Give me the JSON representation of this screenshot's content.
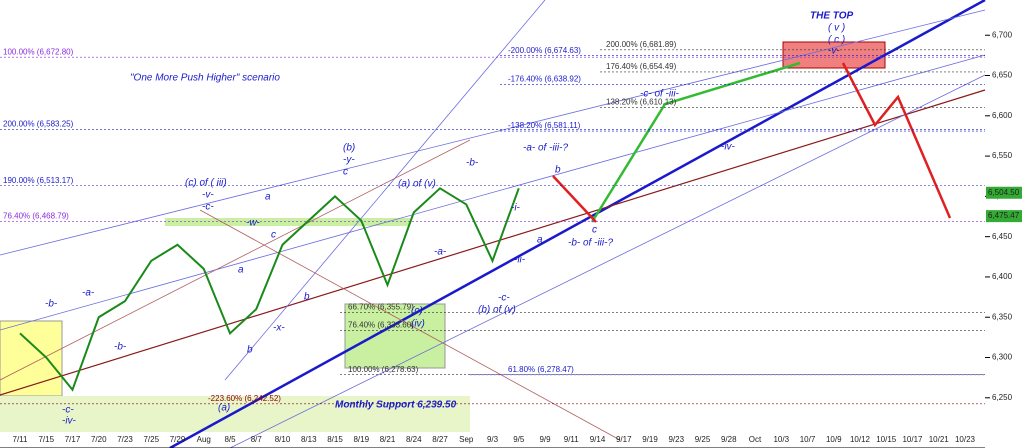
{
  "chart_data": {
    "type": "line",
    "categories": [
      "7/11",
      "7/15",
      "7/17",
      "7/20",
      "7/23",
      "7/25",
      "7/29",
      "Aug",
      "8/5",
      "8/7",
      "8/10",
      "8/13",
      "8/15",
      "8/19",
      "8/21",
      "8/24",
      "8/27",
      "Sep",
      "9/3",
      "9/5",
      "9/9",
      "9/11",
      "9/14",
      "9/17",
      "9/19",
      "9/23",
      "9/25",
      "9/28",
      "Oct",
      "10/3",
      "10/7",
      "10/9",
      "10/12",
      "10/15",
      "10/17",
      "10/21",
      "10/23"
    ],
    "values": [
      6330,
      6300,
      6260,
      6350,
      6370,
      6420,
      6440,
      6410,
      6330,
      6360,
      6440,
      6470,
      6500,
      6470,
      6390,
      6480,
      6510,
      6490,
      6420,
      6510,
      null,
      null,
      null,
      null,
      null,
      null,
      null,
      null,
      null,
      null,
      null,
      null,
      null,
      null,
      null,
      null,
      null
    ],
    "color": "#1a8a1a",
    "ylim": [
      6215,
      6740
    ],
    "yticks": [
      {
        "value": 6250,
        "label": "6,250"
      },
      {
        "value": 6300,
        "label": "6,300"
      },
      {
        "value": 6350,
        "label": "6,350"
      },
      {
        "value": 6400,
        "label": "6,400"
      },
      {
        "value": 6450,
        "label": "6,450"
      },
      {
        "value": 6500,
        "label": "6,500"
      },
      {
        "value": 6550,
        "label": "6,550"
      },
      {
        "value": 6600,
        "label": "6,600"
      },
      {
        "value": 6650,
        "label": "6,650"
      },
      {
        "value": 6700,
        "label": "6,700"
      }
    ],
    "last_prices": [
      {
        "value": 6504.5,
        "label": "6,504.50"
      },
      {
        "value": 6475.47,
        "label": "6,475.47"
      }
    ],
    "levels": [
      {
        "value": 6672.8,
        "label": "100.00% (6,672.80)",
        "color": "#8a2be2"
      },
      {
        "value": 6583.25,
        "label": "200.00% (6,583.25)",
        "color": "#1a1acc"
      },
      {
        "value": 6513.17,
        "label": "190.00% (6,513.17)",
        "color": "#1a1acc"
      },
      {
        "value": 6468.79,
        "label": "76.40% (6,468.79)",
        "color": "#8a2be2"
      },
      {
        "value": 6674.63,
        "label": "-200.00% (6,674.63)",
        "color": "#1a1acc"
      },
      {
        "value": 6638.92,
        "label": "-176.40% (6,638.92)",
        "color": "#1a1acc"
      },
      {
        "value": 6581.11,
        "label": "-138.20% (6,581.11)",
        "color": "#1a1acc"
      },
      {
        "value": 6278.47,
        "label": "61.80% (6,278.47)",
        "color": "#1a1acc"
      },
      {
        "value": 6681.89,
        "label": "200.00% (6,681.89)",
        "color": "#333"
      },
      {
        "value": 6654.49,
        "label": "176.40% (6,654.49)",
        "color": "#333"
      },
      {
        "value": 6610.13,
        "label": "138.20% (6,610.13)",
        "color": "#333"
      },
      {
        "value": 6355.79,
        "label": "66.70% (6,355.79)",
        "color": "#333"
      },
      {
        "value": 6333.6,
        "label": "76.40% (6,333.60)",
        "color": "#333"
      },
      {
        "value": 6278.63,
        "label": "100.00% (6,278.63)",
        "color": "#333"
      },
      {
        "value": 6242.52,
        "label": "-223.60% (6,242.52)",
        "color": "#8b0000"
      }
    ],
    "annotations": [
      "THE TOP",
      "( v )",
      "( c )",
      "-v-",
      "\"One More Push Higher\" scenario",
      "(c) of ( iii)",
      "-v-",
      "-c-",
      "(b)",
      "-y-",
      "c",
      "(a) of (v)",
      "-b-",
      "-a- of -iii-?",
      "b",
      "-w-",
      "a",
      "c",
      "a",
      "b",
      "b",
      "-x-",
      "-a-",
      "-i-",
      "-ii-",
      "a",
      "c",
      "-b- of -iii-?",
      "-c- of -iii-",
      "-iv-",
      "(b) of (v)",
      "-c-",
      "(c)",
      "(iv)",
      "-b-",
      "-a-",
      "-b-",
      "-c-",
      "-iv-",
      "(a)",
      "Monthly Support 6,239.50"
    ]
  }
}
